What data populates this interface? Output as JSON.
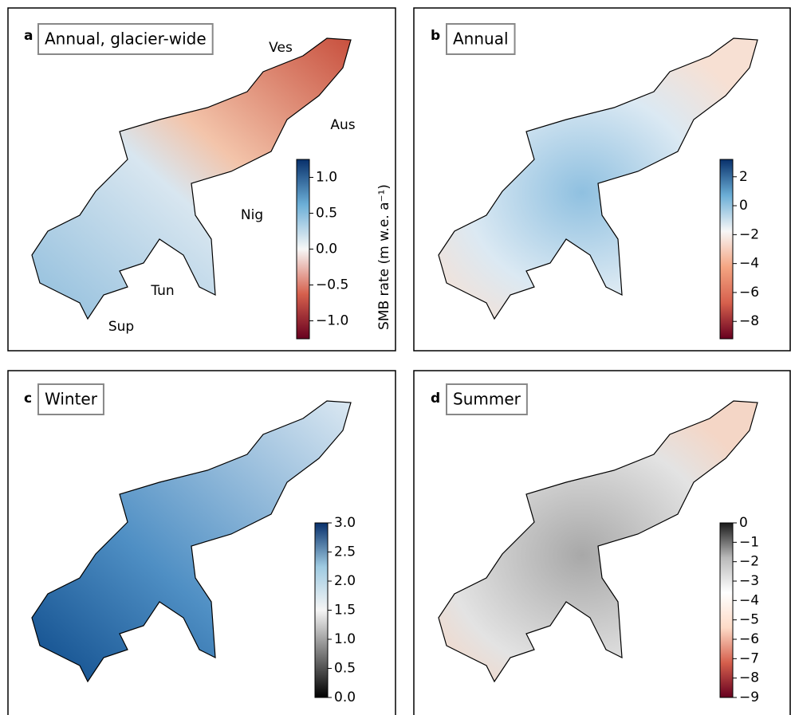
{
  "chart_data": [
    {
      "type": "map",
      "panel_label": "a",
      "title": "Annual, glacier-wide",
      "colorbar_label": "SMB rate (m w.e. a⁻¹)",
      "annotations": [
        "Ves",
        "Aus",
        "Nig",
        "Tun",
        "Sup"
      ],
      "colors": [
        "#67001f",
        "#d6604d",
        "#f7f7f7",
        "#6baed6",
        "#08306b"
      ],
      "ylim": [
        -1.25,
        1.25
      ],
      "yticks": [
        {
          "value": -1.0,
          "label": "−1.0"
        },
        {
          "value": -0.5,
          "label": "−0.5"
        },
        {
          "value": 0.0,
          "label": "0.0"
        },
        {
          "value": 0.5,
          "label": "0.5"
        },
        {
          "value": 1.0,
          "label": "1.0"
        }
      ]
    },
    {
      "type": "map",
      "panel_label": "b",
      "title": "Annual",
      "colors": [
        "#67001f",
        "#d6604d",
        "#f4a582",
        "#f7f7f7",
        "#6baed6",
        "#08306b"
      ],
      "ylim": [
        -9.2,
        3.2
      ],
      "yticks": [
        {
          "value": -8,
          "label": "−8"
        },
        {
          "value": -6,
          "label": "−6"
        },
        {
          "value": -4,
          "label": "−4"
        },
        {
          "value": -2,
          "label": "−2"
        },
        0,
        2
      ]
    },
    {
      "type": "map",
      "panel_label": "c",
      "title": "Winter",
      "colors": [
        "#000000",
        "#7a7a7a",
        "#f5f5f5",
        "#9ecae1",
        "#08306b"
      ],
      "ylim": [
        0,
        3
      ],
      "yticks": [
        {
          "value": 0,
          "label": "0.0"
        },
        {
          "value": 0.5,
          "label": "0.5"
        },
        {
          "value": 1,
          "label": "1.0"
        },
        {
          "value": 1.5,
          "label": "1.5"
        },
        {
          "value": 2,
          "label": "2.0"
        },
        {
          "value": 2.5,
          "label": "2.5"
        },
        {
          "value": 3,
          "label": "3.0"
        }
      ]
    },
    {
      "type": "map",
      "panel_label": "d",
      "title": "Summer",
      "colors": [
        "#67001f",
        "#d6604d",
        "#fddbc7",
        "#ffffff",
        "#bababa",
        "#1a1a1a"
      ],
      "ylim": [
        -9,
        0
      ],
      "yticks": [
        {
          "value": -9,
          "label": "−9"
        },
        {
          "value": -8,
          "label": "−8"
        },
        {
          "value": -7,
          "label": "−7"
        },
        {
          "value": -6,
          "label": "−6"
        },
        {
          "value": -5,
          "label": "−5"
        },
        {
          "value": -4,
          "label": "−4"
        },
        {
          "value": -3,
          "label": "−3"
        },
        {
          "value": -2,
          "label": "−2"
        },
        {
          "value": -1,
          "label": "−1"
        },
        0
      ]
    }
  ]
}
